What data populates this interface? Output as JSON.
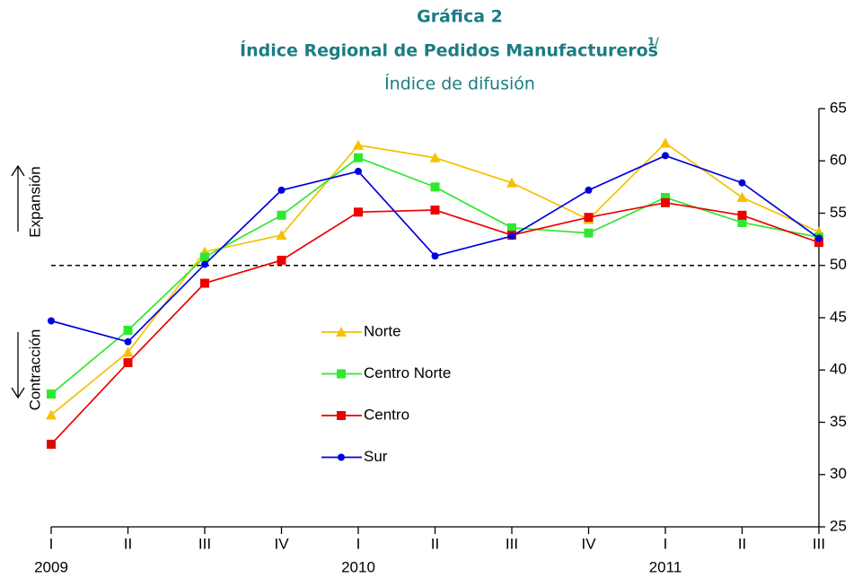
{
  "chart_data": {
    "type": "line",
    "title": "Gráfica 2",
    "subtitle": "Índice Regional de Pedidos Manufactureros",
    "subtitle_note": "1/",
    "caption": "Índice de difusión",
    "categories": [
      "I",
      "II",
      "III",
      "IV",
      "I",
      "II",
      "III",
      "IV",
      "I",
      "II",
      "III"
    ],
    "year_labels": [
      "2009",
      null,
      null,
      null,
      "2010",
      null,
      null,
      null,
      "2011",
      null,
      null
    ],
    "series": [
      {
        "name": "Norte",
        "color": "#f5c000",
        "marker": "triangle",
        "values": [
          35.7,
          41.7,
          51.3,
          52.9,
          61.5,
          60.3,
          57.9,
          54.4,
          61.7,
          56.5,
          53.2
        ]
      },
      {
        "name": "Centro Norte",
        "color": "#2ee82e",
        "marker": "square",
        "values": [
          37.7,
          43.8,
          50.8,
          54.8,
          60.3,
          57.5,
          53.6,
          53.1,
          56.5,
          54.1,
          52.7
        ]
      },
      {
        "name": "Centro",
        "color": "#ee0000",
        "marker": "square",
        "values": [
          32.9,
          40.7,
          48.3,
          50.5,
          55.1,
          55.3,
          52.9,
          54.6,
          56.0,
          54.8,
          52.2
        ]
      },
      {
        "name": "Sur",
        "color": "#0000dd",
        "marker": "circle",
        "values": [
          44.7,
          42.7,
          50.1,
          57.2,
          59.0,
          50.9,
          52.8,
          57.2,
          60.5,
          57.9,
          52.6
        ]
      }
    ],
    "ylim": [
      25,
      65
    ],
    "yticks": [
      25,
      30,
      35,
      40,
      45,
      50,
      55,
      60,
      65
    ],
    "reference_line": 50,
    "upper_label": "Expansión",
    "lower_label": "Contracción",
    "grid": false
  }
}
